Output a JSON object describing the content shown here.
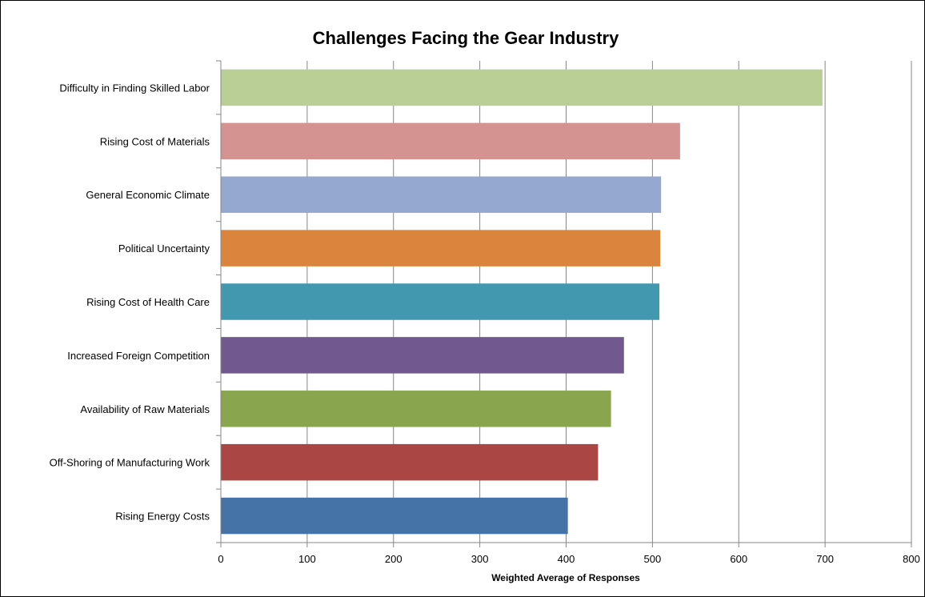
{
  "chart_data": {
    "type": "bar",
    "orientation": "horizontal",
    "title": "Challenges Facing the Gear Industry",
    "xlabel": "Weighted Average of Responses",
    "ylabel": "",
    "xlim": [
      0,
      800
    ],
    "xticks": [
      0,
      100,
      200,
      300,
      400,
      500,
      600,
      700,
      800
    ],
    "xtick_labels": [
      "0",
      "100",
      "200",
      "300",
      "400",
      "500",
      "600",
      "700",
      "800"
    ],
    "grid": "vertical",
    "legend": "none",
    "categories": [
      "Difficulty in Finding Skilled Labor",
      "Rising Cost of Materials",
      "General Economic Climate",
      "Political Uncertainty",
      "Rising Cost of Health Care",
      "Increased Foreign Competition",
      "Availability of Raw Materials",
      "Off-Shoring of Manufacturing Work",
      "Rising Energy Costs"
    ],
    "values": [
      697,
      532,
      510,
      509,
      508,
      467,
      452,
      437,
      402
    ],
    "colors": [
      "#B9CF96",
      "#D49391",
      "#95A9D0",
      "#DB843D",
      "#4198AF",
      "#71588F",
      "#89A54E",
      "#AA4643",
      "#4572A7"
    ]
  }
}
